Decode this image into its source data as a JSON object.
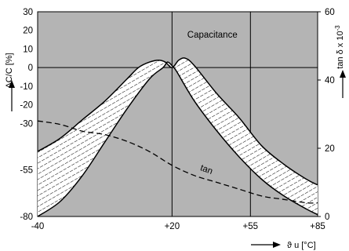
{
  "chart_data": {
    "type": "line",
    "title": "",
    "xlabel": "ϑ u [°C]",
    "ylabel_left": "ΔC/C [%]",
    "ylabel_right": "tan δ x 10",
    "ylabel_right_exp": "-3",
    "x_ticks": [
      {
        "value": -40,
        "label": "-40"
      },
      {
        "value": 20,
        "label": "+20"
      },
      {
        "value": 55,
        "label": "+55"
      },
      {
        "value": 85,
        "label": "+85"
      }
    ],
    "y_left_ticks": [
      {
        "value": 30,
        "label": "30"
      },
      {
        "value": 20,
        "label": "20"
      },
      {
        "value": 10,
        "label": "10"
      },
      {
        "value": 0,
        "label": "0"
      },
      {
        "value": -10,
        "label": "-10"
      },
      {
        "value": -20,
        "label": "-20"
      },
      {
        "value": -30,
        "label": "-30"
      },
      {
        "value": -55,
        "label": "-55"
      },
      {
        "value": -80,
        "label": "-80"
      }
    ],
    "y_right_ticks": [
      {
        "value": 60,
        "label": "60"
      },
      {
        "value": 40,
        "label": "40"
      },
      {
        "value": 20,
        "label": "20"
      },
      {
        "value": 0,
        "label": "0"
      }
    ],
    "xlim": [
      -40,
      85
    ],
    "ylim_left": [
      -80,
      30
    ],
    "ylim_right": [
      0,
      60
    ],
    "grid": {
      "x_lines": [
        20,
        55
      ],
      "y_lines": [
        0
      ]
    },
    "series": [
      {
        "axis": "left",
        "style": "solid",
        "points": [
          [
            -40,
            -45
          ],
          [
            -30,
            -38
          ],
          [
            -20,
            -28
          ],
          [
            -10,
            -18
          ],
          [
            0,
            -6
          ],
          [
            5,
            0
          ],
          [
            10,
            3
          ],
          [
            14,
            4
          ],
          [
            17,
            3
          ],
          [
            20,
            0
          ],
          [
            23,
            4
          ],
          [
            26,
            5
          ],
          [
            30,
            1
          ],
          [
            40,
            -14
          ],
          [
            50,
            -27
          ],
          [
            60,
            -42
          ],
          [
            70,
            -52
          ],
          [
            80,
            -60
          ],
          [
            85,
            -63
          ]
        ]
      },
      {
        "axis": "left",
        "style": "solid",
        "points": [
          [
            -40,
            -80
          ],
          [
            -30,
            -72
          ],
          [
            -20,
            -58
          ],
          [
            -10,
            -40
          ],
          [
            0,
            -22
          ],
          [
            10,
            -6
          ],
          [
            16,
            0
          ],
          [
            18,
            3
          ],
          [
            20,
            1
          ],
          [
            22,
            -2
          ],
          [
            30,
            -18
          ],
          [
            40,
            -34
          ],
          [
            50,
            -48
          ],
          [
            60,
            -60
          ],
          [
            70,
            -69
          ],
          [
            80,
            -76
          ],
          [
            85,
            -79
          ]
        ]
      },
      {
        "axis": "right",
        "style": "dashed",
        "points": [
          [
            -40,
            28
          ],
          [
            -30,
            27
          ],
          [
            -20,
            25
          ],
          [
            -10,
            24
          ],
          [
            0,
            22
          ],
          [
            10,
            19
          ],
          [
            20,
            15
          ],
          [
            30,
            12
          ],
          [
            40,
            10
          ],
          [
            50,
            8
          ],
          [
            60,
            6
          ],
          [
            70,
            5
          ],
          [
            80,
            4
          ],
          [
            85,
            4
          ]
        ]
      }
    ],
    "annotations": [
      {
        "text": "Capacitance",
        "x": 38,
        "y": 16,
        "axis": "left"
      },
      {
        "text": "tan",
        "x": 35,
        "y": 13,
        "axis": "right",
        "rotate": 20
      }
    ]
  }
}
